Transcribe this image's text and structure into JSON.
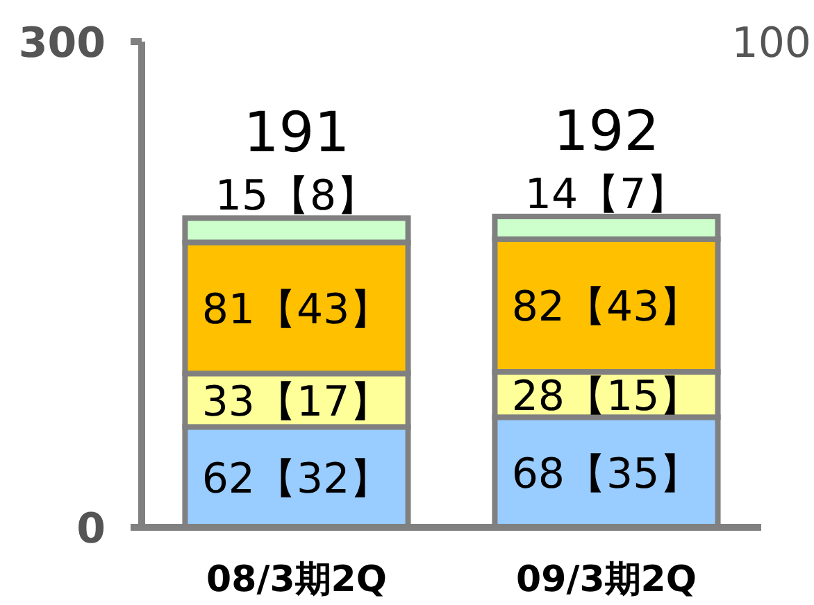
{
  "chart_data": {
    "type": "bar",
    "stacked": true,
    "categories": [
      "08/3期2Q",
      "09/3期2Q"
    ],
    "ylim": [
      0,
      300
    ],
    "yticks": [
      0,
      300
    ],
    "annotations": [
      "100"
    ],
    "series": [
      {
        "color": "#99ccff",
        "values": [
          62,
          68
        ],
        "value_labels": [
          "62【32】",
          "68【35】"
        ]
      },
      {
        "color": "#ffff99",
        "values": [
          33,
          28
        ],
        "value_labels": [
          "33【17】",
          "28【15】"
        ]
      },
      {
        "color": "#ffc000",
        "values": [
          81,
          82
        ],
        "value_labels": [
          "81【43】",
          "82【43】"
        ]
      },
      {
        "color": "#ccffcc",
        "values": [
          15,
          14
        ],
        "value_labels": [
          "15【8】",
          "14【7】"
        ]
      }
    ],
    "totals": [
      "191",
      "192"
    ]
  }
}
